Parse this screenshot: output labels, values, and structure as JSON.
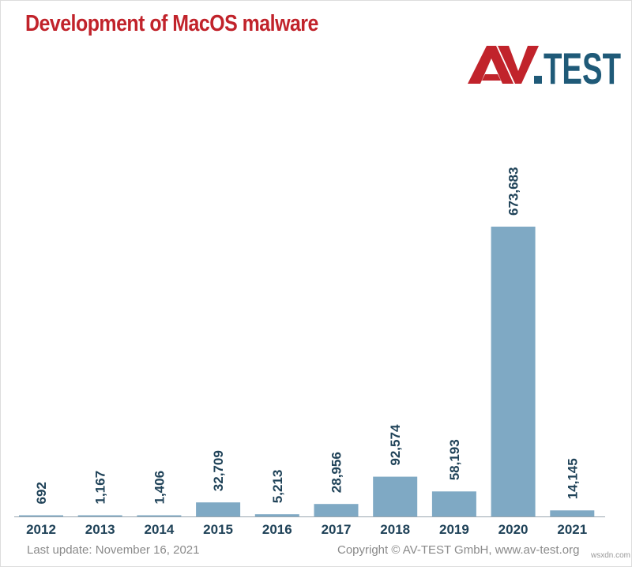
{
  "title": "Development of MacOS malware",
  "logo": {
    "text_left": "AV",
    "text_right": "TEST",
    "left_color": "#c1232b",
    "right_color": "#1f5a78"
  },
  "footer": {
    "last_update": "Last update: November 16, 2021",
    "copyright": "Copyright © AV-TEST GmbH, www.av-test.org"
  },
  "watermark": "wsxdn.com",
  "colors": {
    "title": "#c1232b",
    "bar": "#7fa9c4",
    "label": "#1f4258",
    "axis": "#9aa7b0"
  },
  "chart_data": {
    "type": "bar",
    "title": "Development of MacOS malware",
    "categories": [
      "2012",
      "2013",
      "2014",
      "2015",
      "2016",
      "2017",
      "2018",
      "2019",
      "2020",
      "2021"
    ],
    "values": [
      692,
      1167,
      1406,
      32709,
      5213,
      28956,
      92574,
      58193,
      673683,
      14145
    ],
    "value_labels": [
      "692",
      "1,167",
      "1,406",
      "32,709",
      "5,213",
      "28,956",
      "92,574",
      "58,193",
      "673,683",
      "14,145"
    ],
    "xlabel": "",
    "ylabel": "",
    "ylim": [
      0,
      673683
    ],
    "grid": false,
    "legend": "none"
  }
}
